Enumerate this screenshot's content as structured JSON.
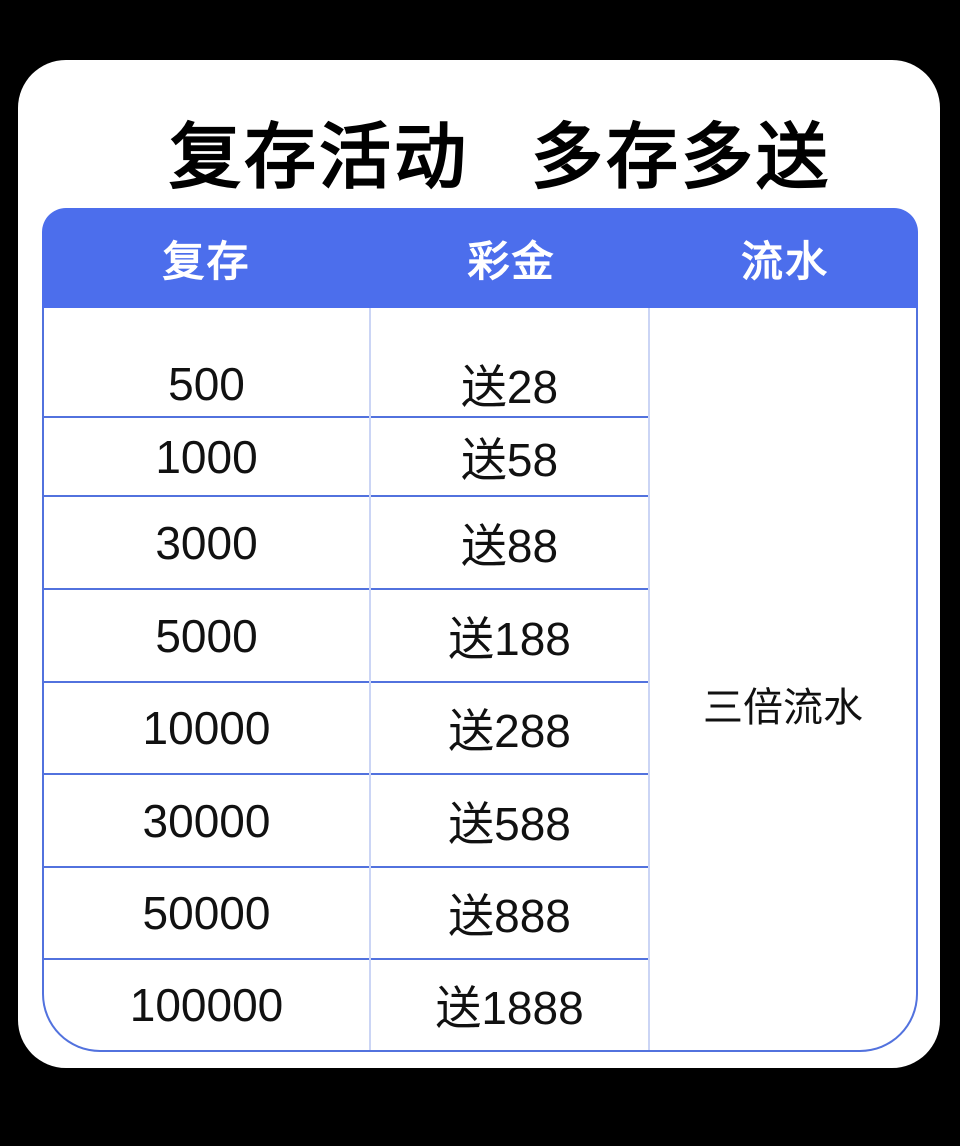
{
  "title": {
    "part1": "复存活动",
    "part2": "多存多送"
  },
  "table": {
    "headers": [
      "复存",
      "彩金",
      "流水"
    ],
    "rows": [
      {
        "deposit": "500",
        "bonus": "送28"
      },
      {
        "deposit": "1000",
        "bonus": "送58"
      },
      {
        "deposit": "3000",
        "bonus": "送88"
      },
      {
        "deposit": "5000",
        "bonus": "送188"
      },
      {
        "deposit": "10000",
        "bonus": "送288"
      },
      {
        "deposit": "30000",
        "bonus": "送588"
      },
      {
        "deposit": "50000",
        "bonus": "送888"
      },
      {
        "deposit": "100000",
        "bonus": "送1888"
      }
    ],
    "turnover": "三倍流水",
    "colors": {
      "page_background": "#000000",
      "card_background": "#ffffff",
      "header_background": "#4C6EEC",
      "header_text": "#ffffff",
      "grid_line_strong": "#5272DE",
      "grid_line_light": "#CBD5F5",
      "cell_text": "#111111"
    }
  }
}
